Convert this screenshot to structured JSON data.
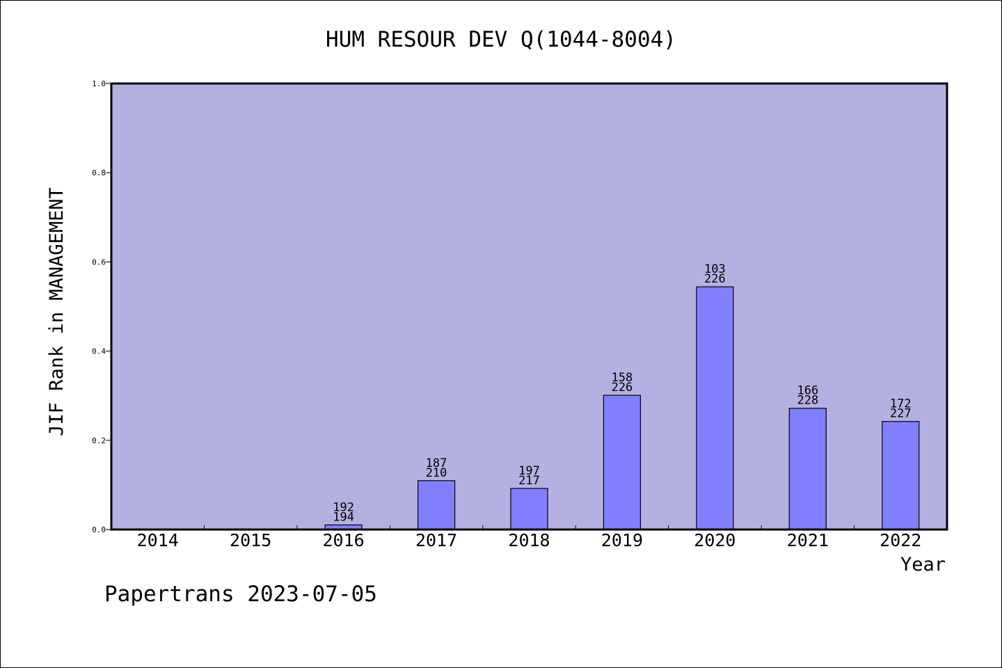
{
  "chart_data": {
    "type": "bar",
    "title": "HUM RESOUR DEV Q(1044-8004)",
    "xlabel": "Year",
    "ylabel": "JIF Rank in MANAGEMENT",
    "categories": [
      "2014",
      "2015",
      "2016",
      "2017",
      "2018",
      "2019",
      "2020",
      "2021",
      "2022"
    ],
    "values": [
      0,
      0,
      0.0103,
      0.1095,
      0.0922,
      0.3009,
      0.5442,
      0.2719,
      0.2423
    ],
    "bar_labels": [
      [
        "",
        ""
      ],
      [
        "",
        ""
      ],
      [
        "192",
        "194"
      ],
      [
        "187",
        "210"
      ],
      [
        "197",
        "217"
      ],
      [
        "158",
        "226"
      ],
      [
        "103",
        "226"
      ],
      [
        "166",
        "228"
      ],
      [
        "172",
        "227"
      ]
    ],
    "ylim": [
      0,
      1.0
    ],
    "yticks": [
      "0.0",
      "0.2",
      "0.4",
      "0.6",
      "0.8",
      "1.0"
    ],
    "grid": false,
    "colors": {
      "plot_background": "#b5b0e2",
      "bar_fill": "#8080ff",
      "bar_stroke": "#000000"
    }
  },
  "footer": {
    "credit": "Papertrans 2023-07-05"
  }
}
